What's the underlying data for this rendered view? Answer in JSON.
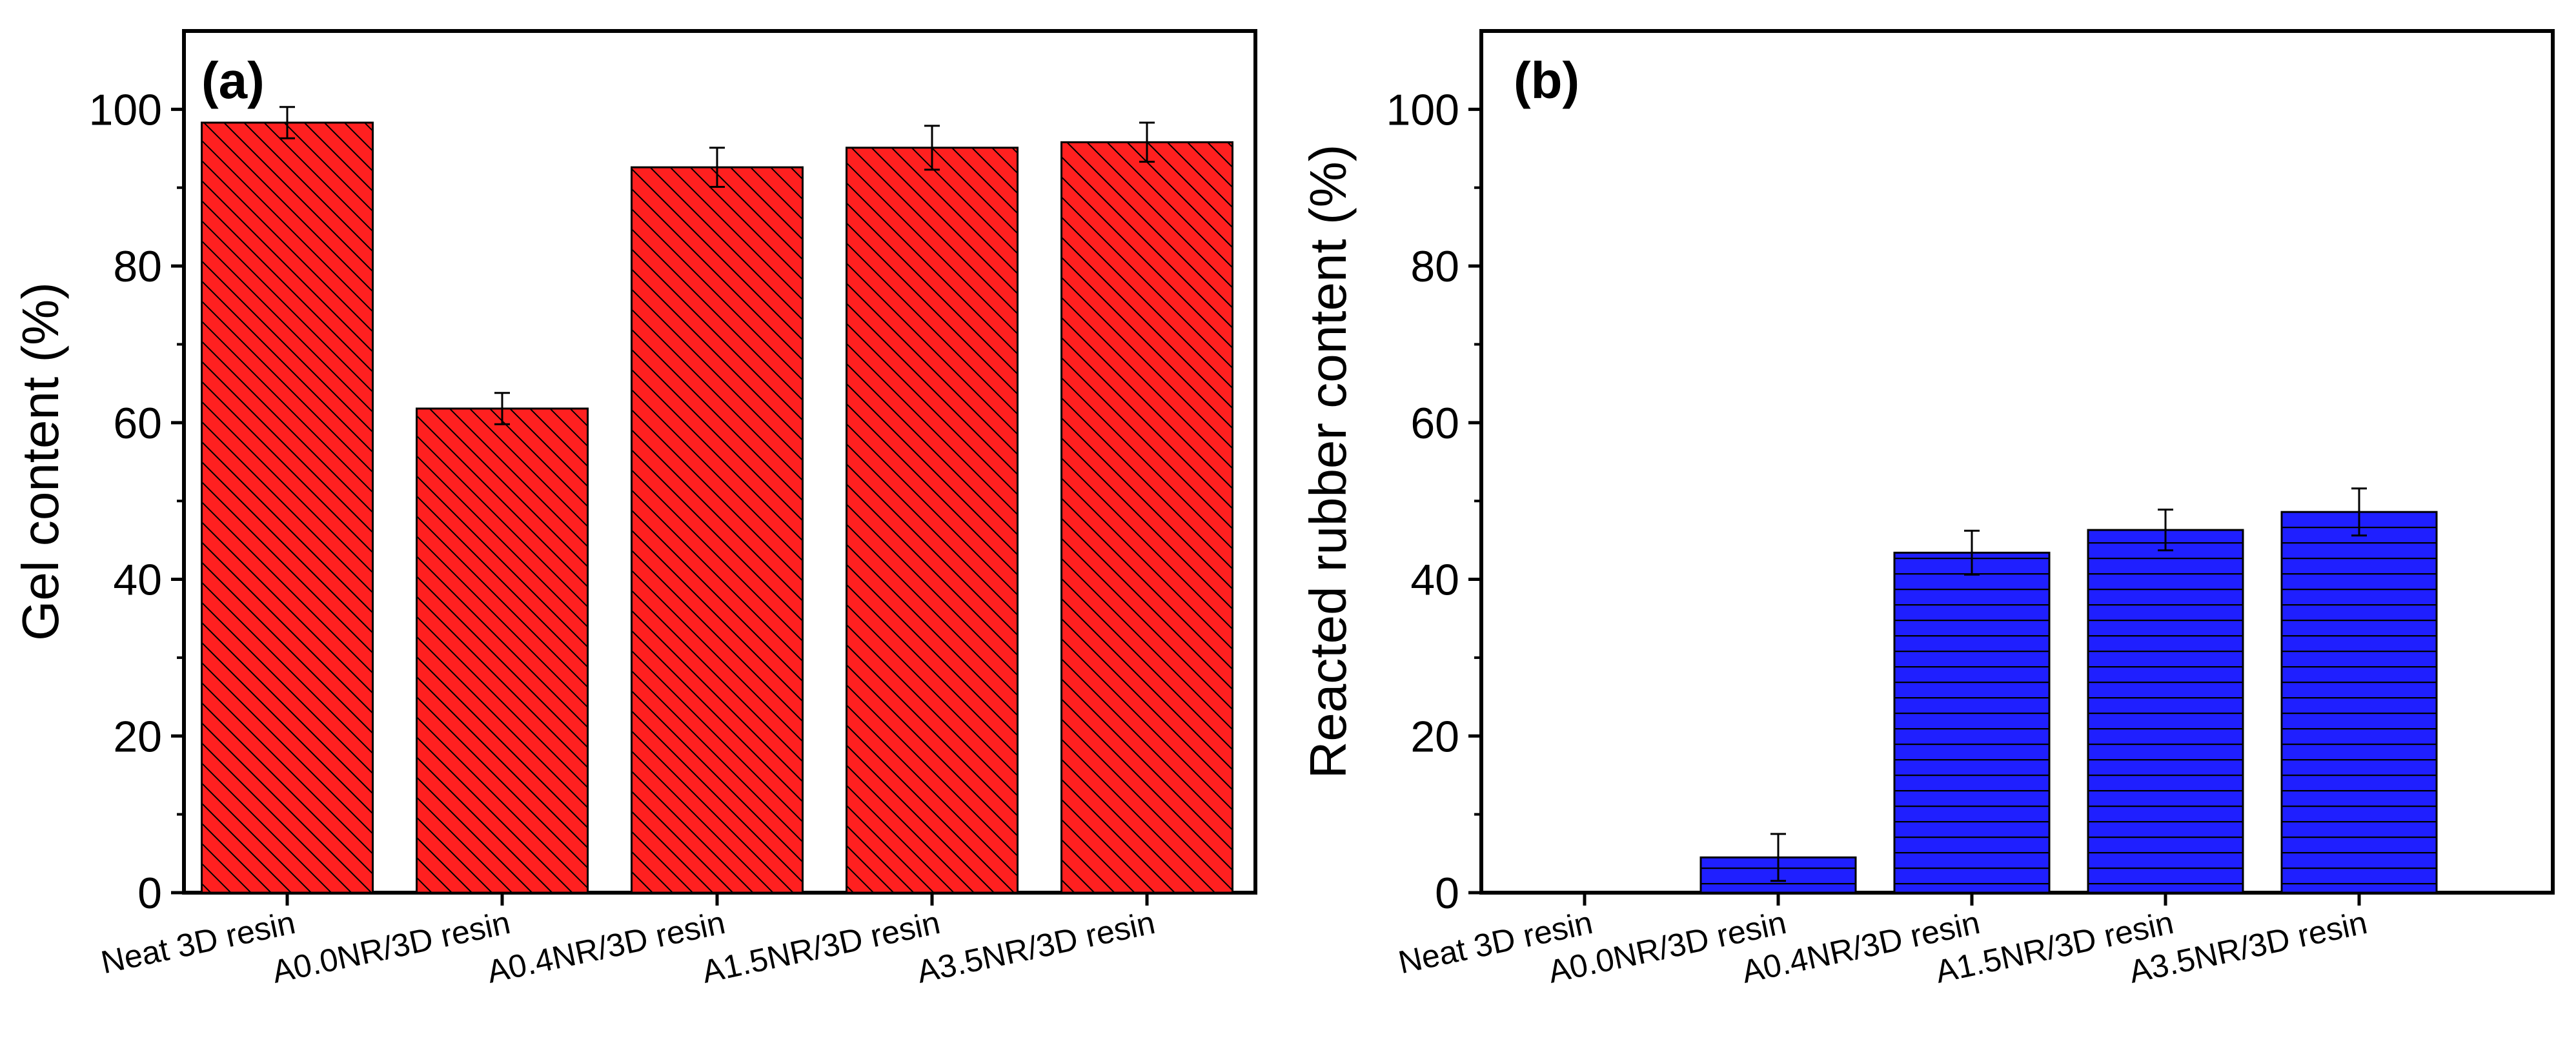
{
  "chart_data": [
    {
      "type": "bar",
      "panel_label": "(a)",
      "title": "",
      "xlabel": "",
      "ylabel": "Gel content (%)",
      "ylim": [
        0,
        110
      ],
      "yticks": [
        0,
        20,
        40,
        60,
        80,
        100
      ],
      "grid": false,
      "categories": [
        "Neat 3D resin",
        "A0.0NR/3D resin",
        "A0.4NR/3D resin",
        "A1.5NR/3D resin",
        "A3.5NR/3D resin"
      ],
      "values": [
        98.3,
        61.8,
        92.6,
        95.1,
        95.8
      ],
      "errors": [
        2.0,
        2.0,
        2.5,
        2.8,
        2.5
      ],
      "bar_color": "#ff2020",
      "pattern": "diagonal-hatch"
    },
    {
      "type": "bar",
      "panel_label": "(b)",
      "title": "",
      "xlabel": "",
      "ylabel": "Reacted rubber content (%)",
      "ylim": [
        0,
        110
      ],
      "yticks": [
        0,
        20,
        40,
        60,
        80,
        100
      ],
      "grid": false,
      "categories": [
        "Neat 3D resin",
        "A0.0NR/3D resin",
        "A0.4NR/3D resin",
        "A1.5NR/3D resin",
        "A3.5NR/3D resin"
      ],
      "values": [
        0,
        4.5,
        43.4,
        46.3,
        48.6
      ],
      "errors": [
        0,
        3.0,
        2.8,
        2.6,
        3.0
      ],
      "bar_color": "#1f1fff",
      "pattern": "horizontal-lines"
    }
  ]
}
